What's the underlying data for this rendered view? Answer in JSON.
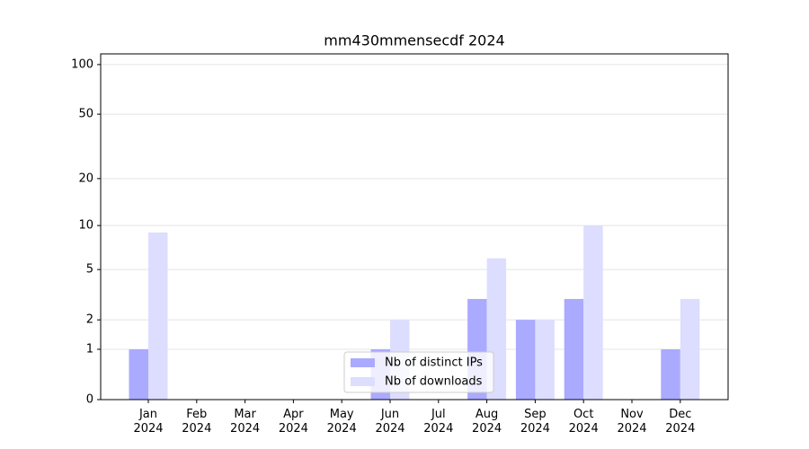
{
  "chart_data": {
    "type": "bar",
    "title": "mm430mmensecdf 2024",
    "categories": [
      "Jan 2024",
      "Feb 2024",
      "Mar 2024",
      "Apr 2024",
      "May 2024",
      "Jun 2024",
      "Jul 2024",
      "Aug 2024",
      "Sep 2024",
      "Oct 2024",
      "Nov 2024",
      "Dec 2024"
    ],
    "series": [
      {
        "name": "Nb of distinct IPs",
        "color": "#aaaaff",
        "values": [
          1,
          0,
          0,
          0,
          0,
          1,
          0,
          3,
          2,
          3,
          0,
          1
        ]
      },
      {
        "name": "Nb of downloads",
        "color": "#ddddff",
        "values": [
          9,
          0,
          0,
          0,
          0,
          2,
          0,
          6,
          2,
          10,
          0,
          3
        ]
      }
    ],
    "yscale": "log1p",
    "ylim": [
      0,
      116
    ],
    "yticks": [
      0,
      1,
      2,
      5,
      10,
      20,
      50,
      100
    ],
    "grid": true,
    "legend": "lower center"
  }
}
